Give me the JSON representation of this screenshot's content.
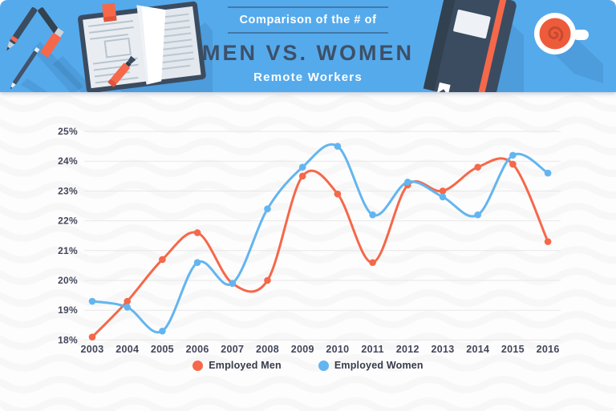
{
  "header": {
    "eyebrow": "Comparison of the # of",
    "title": "MEN VS. WOMEN",
    "subtitle": "Remote Workers"
  },
  "palette": {
    "header_bg": "#55aaec",
    "navy": "#3b4c61",
    "title_navy": "#3d5068",
    "orange": "#f5684a",
    "blue": "#63b5f0",
    "grid": "#e8e8e8",
    "axis_text": "#42465a",
    "wave": "#f5f5f5",
    "page_bg": "#fdfdfd"
  },
  "chart_data": {
    "type": "line",
    "title": "Comparison of the # of Men vs. Women Remote Workers",
    "x": [
      2003,
      2004,
      2005,
      2006,
      2007,
      2008,
      2009,
      2010,
      2011,
      2012,
      2013,
      2014,
      2015,
      2016
    ],
    "y_ticks": [
      "25%",
      "24%",
      "23%",
      "22%",
      "21%",
      "20%",
      "19%",
      "18%"
    ],
    "ylim": [
      18,
      25
    ],
    "unit": "%",
    "grid": true,
    "legend_position": "bottom",
    "smooth": true,
    "series": [
      {
        "name": "Employed Men",
        "color": "#f5684a",
        "values": [
          18.1,
          19.3,
          20.7,
          21.6,
          19.9,
          20.0,
          23.5,
          22.9,
          20.6,
          23.2,
          23.0,
          23.8,
          23.9,
          21.3
        ]
      },
      {
        "name": "Employed Women",
        "color": "#63b5f0",
        "values": [
          19.3,
          19.1,
          18.3,
          20.6,
          19.9,
          22.4,
          23.8,
          24.5,
          22.2,
          23.3,
          22.8,
          22.2,
          24.2,
          23.6
        ]
      }
    ]
  }
}
